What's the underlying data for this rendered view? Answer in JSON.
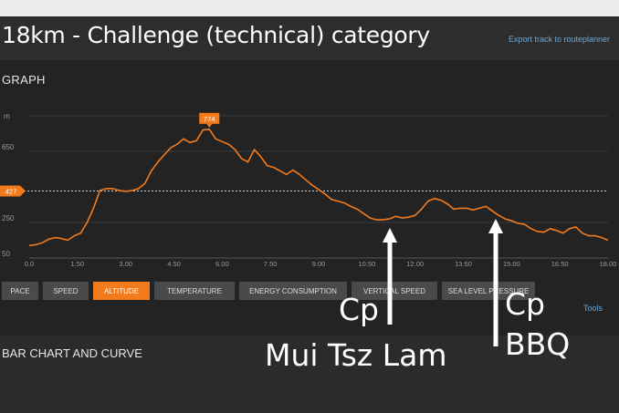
{
  "header": {
    "title": "18km - Challenge (technical) category",
    "export_link": "Export track to routeplanner"
  },
  "graph": {
    "heading": "GRAPH",
    "y_unit": "m",
    "current_value_label": "427",
    "peak_label": "774"
  },
  "tabs": [
    {
      "label": "PACE",
      "active": false
    },
    {
      "label": "SPEED",
      "active": false
    },
    {
      "label": "ALTITUDE",
      "active": true
    },
    {
      "label": "TEMPERATURE",
      "active": false
    },
    {
      "label": "ENERGY CONSUMPTION",
      "active": false
    },
    {
      "label": "VERTICAL SPEED",
      "active": false
    },
    {
      "label": "SEA LEVEL PRESSURE",
      "active": false
    }
  ],
  "tools_link": "Tools",
  "bar_section": {
    "heading": "BAR CHART AND CURVE"
  },
  "annotations": {
    "cp1_line1": "Cp",
    "cp1_line2": "Mui Tsz Lam",
    "cp2_line1": "Cp",
    "cp2_line2": "BBQ"
  },
  "colors": {
    "accent": "#f47b1c",
    "link": "#6fa8d6",
    "background": "#232323"
  },
  "chart_data": {
    "type": "area",
    "xlabel": "",
    "ylabel": "m",
    "xlim": [
      0,
      18
    ],
    "ylim": [
      50,
      850
    ],
    "x_ticks": [
      "0.0",
      "1.50",
      "3.00",
      "4.50",
      "6.00",
      "7.50",
      "9.00",
      "10.50",
      "12.00",
      "13.50",
      "15.00",
      "16.50",
      "18.00"
    ],
    "y_ticks": [
      "50",
      "250",
      "650"
    ],
    "reference_line": 427,
    "peak": {
      "x": 5.6,
      "y": 774
    },
    "series": [
      {
        "x": [
          0,
          0.2,
          0.4,
          0.6,
          0.8,
          1.0,
          1.2,
          1.4,
          1.6,
          1.8,
          2.0,
          2.2,
          2.4,
          2.6,
          2.8,
          3.0,
          3.2,
          3.4,
          3.6,
          3.8,
          4.0,
          4.2,
          4.4,
          4.6,
          4.8,
          5.0,
          5.2,
          5.4,
          5.6,
          5.8,
          6.0,
          6.2,
          6.4,
          6.6,
          6.8,
          7.0,
          7.2,
          7.4,
          7.6,
          7.8,
          8.0,
          8.2,
          8.4,
          8.6,
          8.8,
          9.0,
          9.2,
          9.4,
          9.6,
          9.8,
          10.0,
          10.2,
          10.4,
          10.6,
          10.8,
          11.0,
          11.2,
          11.4,
          11.6,
          11.8,
          12.0,
          12.2,
          12.4,
          12.6,
          12.8,
          13.0,
          13.2,
          13.4,
          13.6,
          13.8,
          14.0,
          14.2,
          14.4,
          14.6,
          14.8,
          15.0,
          15.2,
          15.4,
          15.6,
          15.8,
          16.0,
          16.2,
          16.4,
          16.6,
          16.8,
          17.0,
          17.2,
          17.4,
          17.6,
          17.8,
          18.0
        ],
        "y": [
          120,
          125,
          135,
          155,
          165,
          160,
          150,
          175,
          190,
          250,
          330,
          430,
          440,
          440,
          430,
          425,
          430,
          440,
          470,
          540,
          590,
          630,
          670,
          690,
          720,
          700,
          710,
          770,
          774,
          720,
          705,
          690,
          660,
          610,
          590,
          660,
          620,
          570,
          560,
          540,
          520,
          545,
          520,
          490,
          460,
          435,
          410,
          380,
          370,
          360,
          340,
          325,
          300,
          275,
          265,
          265,
          270,
          285,
          275,
          280,
          290,
          325,
          370,
          385,
          375,
          355,
          325,
          330,
          330,
          320,
          330,
          340,
          315,
          290,
          270,
          260,
          245,
          240,
          215,
          200,
          195,
          215,
          205,
          190,
          215,
          225,
          190,
          175,
          175,
          165,
          150
        ]
      }
    ]
  }
}
